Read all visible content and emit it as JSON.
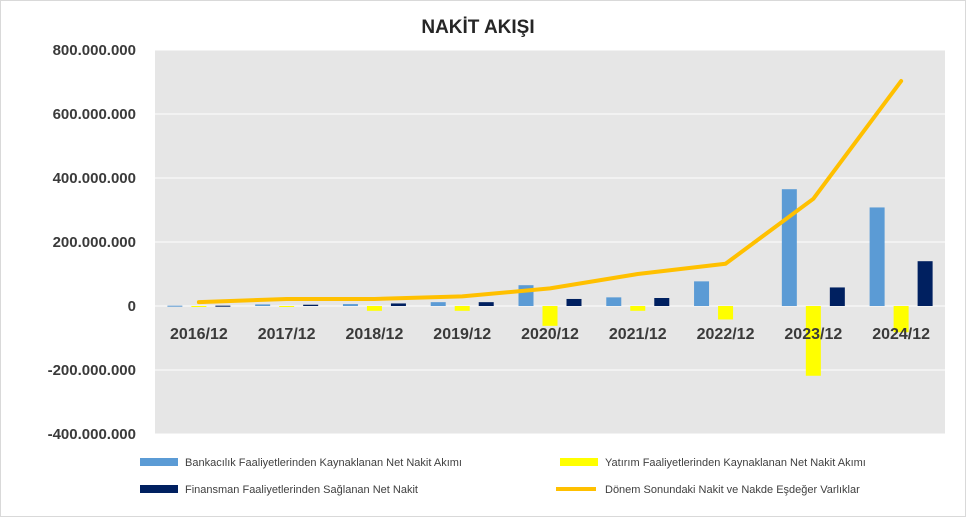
{
  "chart_data": {
    "type": "bar",
    "title": "NAKİT AKIŞI",
    "xlabel": "",
    "ylabel": "",
    "categories": [
      "2016/12",
      "2017/12",
      "2018/12",
      "2019/12",
      "2020/12",
      "2021/12",
      "2022/12",
      "2023/12",
      "2024/12"
    ],
    "ylim": [
      -400000000,
      800000000
    ],
    "yticks": [
      800000000,
      600000000,
      400000000,
      200000000,
      0,
      -200000000,
      -400000000
    ],
    "ytick_labels": [
      "800.000.000",
      "600.000.000",
      "400.000.000",
      "200.000.000",
      "0",
      "-200.000.000",
      "-400.000.000"
    ],
    "grid": true,
    "legend_position": "bottom",
    "series": [
      {
        "name": "Bankacılık Faaliyetlerinden Kaynaklanan Net Nakit Akımı",
        "kind": "bar",
        "color": "#5b9bd5",
        "values": [
          1000000,
          5000000,
          6000000,
          12000000,
          65000000,
          27000000,
          77000000,
          365000000,
          308000000
        ]
      },
      {
        "name": "Yatırım Faaliyetlerinden Kaynaklanan Net Nakit Akımı",
        "kind": "bar",
        "color": "#ffff00",
        "values": [
          -1000000,
          -3000000,
          -15000000,
          -15000000,
          -62000000,
          -15000000,
          -42000000,
          -218000000,
          -82000000
        ]
      },
      {
        "name": "Finansman Faaliyetlerinden Sağlanan Net Nakit",
        "kind": "bar",
        "color": "#002060",
        "values": [
          1000000,
          4000000,
          8000000,
          12000000,
          22000000,
          25000000,
          0,
          58000000,
          140000000
        ]
      },
      {
        "name": "Dönem Sonundaki Nakit ve Nakde Eşdeğer Varlıklar",
        "kind": "line",
        "color": "#ffc000",
        "values": [
          12000000,
          22000000,
          22000000,
          30000000,
          55000000,
          100000000,
          132000000,
          335000000,
          703000000
        ]
      }
    ]
  }
}
